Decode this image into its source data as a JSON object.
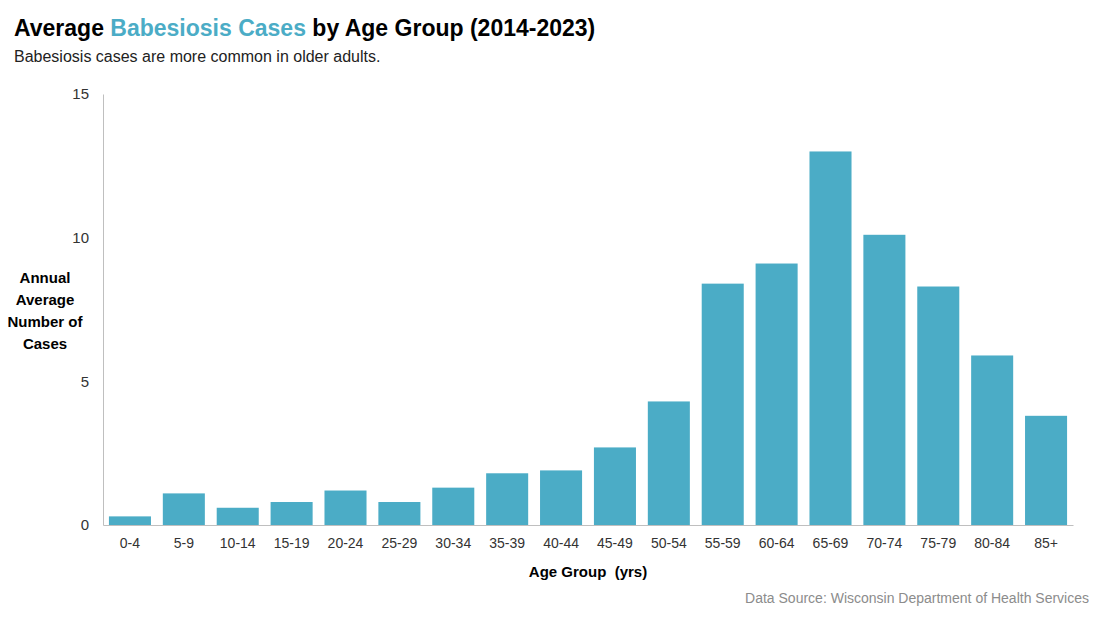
{
  "chart_data": {
    "type": "bar",
    "title": [
      "Average ",
      "Babesiosis Cases",
      " by Age Group (2014-2023)"
    ],
    "subtitle": "Babesiosis cases are more common in older adults.",
    "ylabel": [
      "Annual",
      "Average",
      "Number of",
      "Cases"
    ],
    "xlabel": "Age Group  (yrs)",
    "source": "Data Source: Wisconsin Department of Health Services",
    "categories": [
      "0-4",
      "5-9",
      "10-14",
      "15-19",
      "20-24",
      "25-29",
      "30-34",
      "35-39",
      "40-44",
      "45-49",
      "50-54",
      "55-59",
      "60-64",
      "65-69",
      "70-74",
      "75-79",
      "80-84",
      "85+"
    ],
    "values": [
      0.3,
      1.1,
      0.6,
      0.8,
      1.2,
      0.8,
      1.3,
      1.8,
      1.9,
      2.7,
      4.3,
      8.4,
      9.1,
      13.0,
      10.1,
      8.3,
      5.9,
      3.8
    ],
    "color": "#4bacc6",
    "ylim": [
      0,
      15
    ],
    "yticks": [
      0,
      5,
      10,
      15
    ],
    "grid": false
  }
}
